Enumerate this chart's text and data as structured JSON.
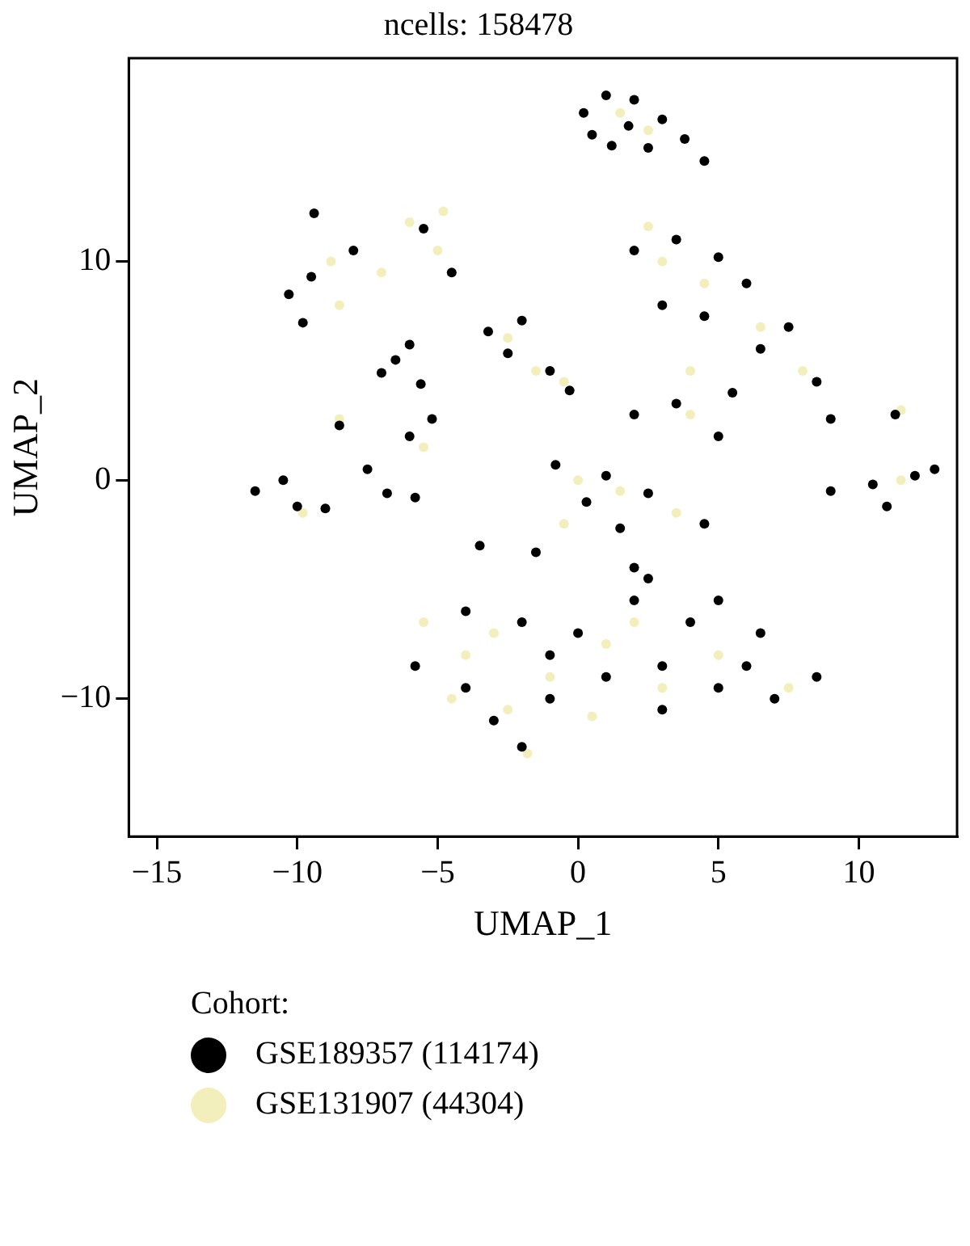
{
  "chart_data": {
    "type": "scatter",
    "title": "ncells: 158478",
    "xlabel": "UMAP_1",
    "ylabel": "UMAP_2",
    "legend_title": "Cohort:",
    "legend": "bottom",
    "grid": false,
    "marker": "circle",
    "xlim": [
      -16,
      13.5
    ],
    "xticks": [
      -15,
      -10,
      -5,
      0,
      5,
      10
    ],
    "ylim": [
      -16.3,
      19.3
    ],
    "yticks": [
      -10,
      0,
      10
    ],
    "series": [
      {
        "name": "GSE189357 (114174)",
        "color": "#000000",
        "x": [
          0.2,
          1,
          2,
          3,
          1.2,
          2.5,
          3.8,
          4.5,
          0.5,
          1.8,
          -10.3,
          -9.8,
          -9.5,
          -6,
          -5.6,
          -7,
          -4.5,
          -5.5,
          -8,
          -9.4,
          -6.5,
          -3.2,
          -2,
          -1,
          -2.5,
          -0.3,
          2,
          3.5,
          5,
          7.5,
          8.5,
          6.5,
          2,
          3.5,
          5,
          5.5,
          3,
          4.5,
          9,
          6,
          -11.5,
          -10.5,
          -9,
          -8.5,
          -6,
          -5.2,
          -6.8,
          -7.5,
          -5.8,
          -10,
          9,
          10.5,
          12,
          12.7,
          11,
          11.3,
          -0.8,
          1,
          2.5,
          4.5,
          1.5,
          0.3,
          -1.5,
          -3.5,
          2,
          -5.8,
          -4,
          -2,
          0,
          2,
          2.5,
          4,
          5,
          6.5,
          8.5,
          7,
          5,
          3,
          1,
          -1,
          -2,
          -3,
          -4,
          -1,
          3,
          6
        ],
        "values": [
          16.8,
          17.6,
          17.4,
          16.5,
          15.3,
          15.2,
          15.6,
          14.6,
          15.8,
          16.2,
          8.5,
          7.2,
          9.3,
          6.2,
          4.4,
          4.9,
          9.5,
          11.5,
          10.5,
          12.2,
          5.5,
          6.8,
          7.3,
          5,
          5.8,
          4.1,
          10.5,
          11,
          10.2,
          7,
          4.5,
          6,
          3,
          3.5,
          2,
          4,
          8,
          7.5,
          2.8,
          9,
          -0.5,
          0,
          -1.3,
          2.5,
          2,
          2.8,
          -0.6,
          0.5,
          -0.8,
          -1.2,
          -0.5,
          -0.2,
          0.2,
          0.5,
          -1.2,
          3,
          0.7,
          0.2,
          -0.6,
          -2,
          -2.2,
          -1,
          -3.3,
          -3,
          -4,
          -8.5,
          -6,
          -6.5,
          -7,
          -5.5,
          -4.5,
          -6.5,
          -5.5,
          -7,
          -9,
          -10,
          -9.5,
          -8.5,
          -9,
          -10,
          -12.2,
          -11,
          -9.5,
          -8,
          -10.5,
          -8.5
        ]
      },
      {
        "name": "GSE131907 (44304)",
        "color": "#f2efbd",
        "x": [
          1.5,
          2.5,
          -8.8,
          -6,
          -5,
          -8.5,
          -7,
          -4.8,
          -2.5,
          -1.5,
          -0.5,
          3,
          4.5,
          8,
          6.5,
          4,
          2.5,
          4,
          -8.5,
          -5.5,
          -9.8,
          11.5,
          11.5,
          0,
          1.5,
          3.5,
          -0.5,
          -5.5,
          -4,
          -3,
          -1,
          -2.5,
          -1.8,
          1,
          3,
          0.5,
          -4.5,
          5,
          7.5,
          2
        ],
        "values": [
          16.8,
          16,
          10,
          11.8,
          10.5,
          8,
          9.5,
          12.3,
          6.5,
          5,
          4.5,
          10,
          9,
          5,
          7,
          5,
          11.6,
          3,
          2.8,
          1.5,
          -1.5,
          0,
          3.2,
          0,
          -0.5,
          -1.5,
          -2,
          -6.5,
          -8,
          -7,
          -9,
          -10.5,
          -12.5,
          -7.5,
          -9.5,
          -10.8,
          -10,
          -8,
          -9.5,
          -6.5
        ]
      }
    ]
  }
}
